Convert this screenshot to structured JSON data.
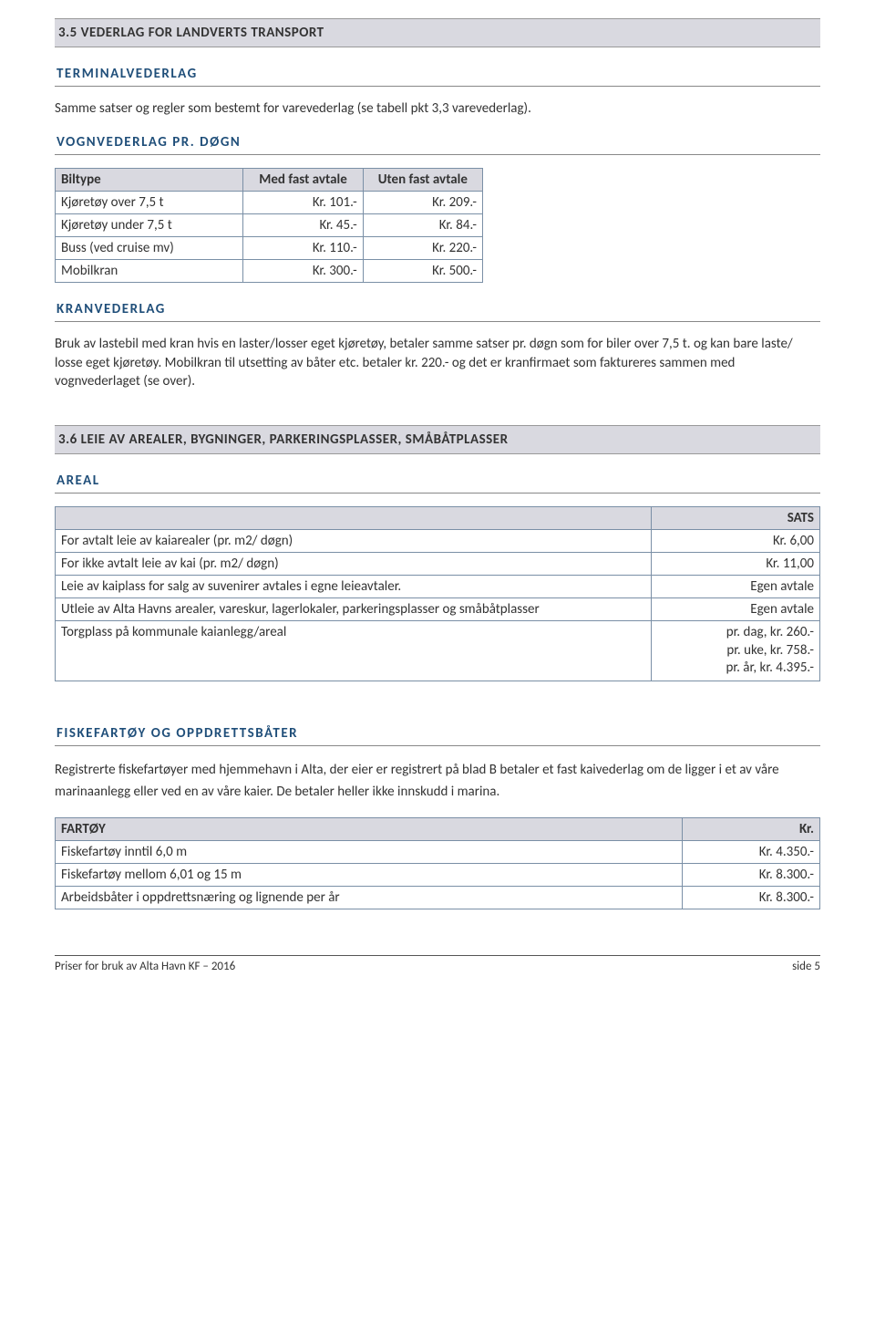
{
  "section35": {
    "title": "3.5 VEDERLAG FOR LANDVERTS TRANSPORT",
    "terminal": {
      "heading": "TERMINALVEDERLAG",
      "text": "Samme satser og regler som bestemt for varevederlag (se tabell pkt 3,3 varevederlag)."
    },
    "vogn": {
      "heading": "VOGNVEDERLAG PR. DØGN",
      "col0": "Biltype",
      "col1": "Med fast avtale",
      "col2": "Uten fast avtale",
      "rows": [
        {
          "c0": "Kjøretøy over 7,5 t",
          "c1": "Kr. 101.-",
          "c2": "Kr. 209.-"
        },
        {
          "c0": "Kjøretøy under 7,5 t",
          "c1": "Kr. 45.-",
          "c2": "Kr. 84.-"
        },
        {
          "c0": "Buss (ved cruise mv)",
          "c1": "Kr. 110.-",
          "c2": "Kr. 220.-"
        },
        {
          "c0": "Mobilkran",
          "c1": "Kr. 300.-",
          "c2": "Kr. 500.-"
        }
      ]
    },
    "kran": {
      "heading": "KRANVEDERLAG",
      "text": "Bruk av lastebil med kran hvis en laster/losser eget kjøretøy, betaler samme satser pr. døgn som for biler over 7,5 t. og kan bare laste/ losse eget kjøretøy. Mobilkran til utsetting av båter etc. betaler kr. 220.- og det er kranfirmaet som faktureres sammen med vognvederlaget (se over)."
    }
  },
  "section36": {
    "title": "3.6 LEIE AV AREALER, BYGNINGER, PARKERINGSPLASSER, SMÅBÅTPLASSER",
    "areal": {
      "heading": "AREAL",
      "colRight": "SATS",
      "rows": [
        {
          "c0": "For avtalt leie av kaiarealer (pr. m2/ døgn)",
          "c1": "Kr. 6,00"
        },
        {
          "c0": "For ikke avtalt leie av kai (pr. m2/ døgn)",
          "c1": "Kr. 11,00"
        },
        {
          "c0": "Leie av kaiplass for salg av suvenirer avtales i egne leieavtaler.",
          "c1": "Egen avtale"
        },
        {
          "c0": "Utleie av Alta Havns arealer, vareskur, lagerlokaler, parkeringsplasser og småbåtplasser",
          "c1": "Egen avtale"
        },
        {
          "c0": "Torgplass på kommunale kaianlegg/areal",
          "c1": "pr. dag, kr. 260.-\npr. uke, kr. 758.-\npr. år, kr. 4.395.-"
        }
      ]
    },
    "fiske": {
      "heading": "FISKEFARTØY OG OPPDRETTSBÅTER",
      "text": "Registrerte fiskefartøyer med hjemmehavn i Alta, der eier er registrert på blad B betaler et fast kaivederlag om de ligger i et av våre marinaanlegg eller ved en av våre kaier. De betaler heller ikke innskudd i marina.",
      "col0": "FARTØY",
      "col1": "Kr.",
      "rows": [
        {
          "c0": "Fiskefartøy inntil 6,0 m",
          "c1": "Kr. 4.350.-"
        },
        {
          "c0": "Fiskefartøy mellom 6,01 og 15 m",
          "c1": "Kr. 8.300.-"
        },
        {
          "c0": "Arbeidsbåter  i oppdrettsnæring og lignende per år",
          "c1": "Kr. 8.300.-"
        }
      ]
    }
  },
  "footer": {
    "left": "Priser for bruk av Alta Havn KF – 2016",
    "right": "side 5"
  }
}
